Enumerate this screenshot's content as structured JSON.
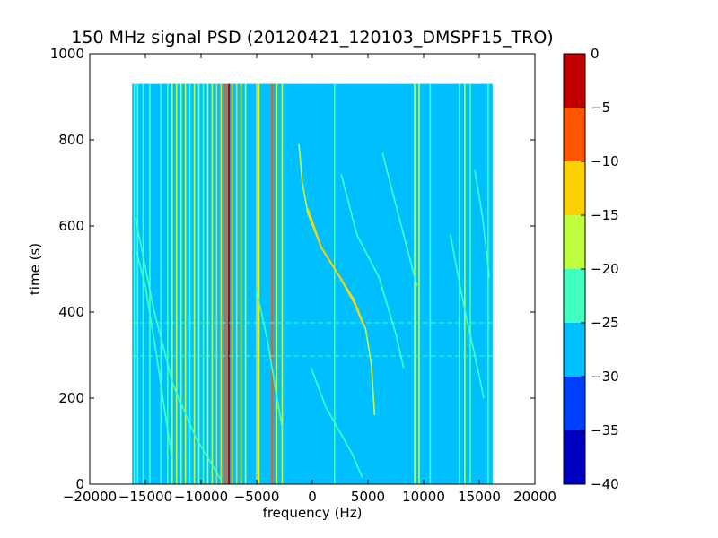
{
  "chart_data": {
    "type": "heatmap",
    "title": "150 MHz signal PSD (20120421_120103_DMSPF15_TRO)",
    "xlabel": "frequency (Hz)",
    "ylabel": "time (s)",
    "xlim": [
      -20000,
      20000
    ],
    "ylim": [
      0,
      1000
    ],
    "xticks": [
      -20000,
      -15000,
      -10000,
      -5000,
      0,
      5000,
      10000,
      15000,
      20000
    ],
    "xtick_labels": [
      "−20000",
      "−15000",
      "−10000",
      "−5000",
      "0",
      "5000",
      "10000",
      "15000",
      "20000"
    ],
    "yticks": [
      0,
      200,
      400,
      600,
      800,
      1000
    ],
    "ytick_labels": [
      "0",
      "200",
      "400",
      "600",
      "800",
      "1000"
    ],
    "data_extent": {
      "x": [
        -16200,
        16200
      ],
      "y": [
        0,
        930
      ]
    },
    "background_level": -27.5,
    "colorbar": {
      "range": [
        -40,
        0
      ],
      "ticks": [
        0,
        -5,
        -10,
        -15,
        -20,
        -25,
        -30,
        -35,
        -40
      ],
      "tick_labels": [
        "0",
        "−5",
        "−10",
        "−15",
        "−20",
        "−25",
        "−30",
        "−35",
        "−40"
      ],
      "levels": [
        {
          "from": -40,
          "to": -35,
          "color": "#0000bf"
        },
        {
          "from": -35,
          "to": -30,
          "color": "#0040ff"
        },
        {
          "from": -30,
          "to": -25,
          "color": "#00bfff"
        },
        {
          "from": -25,
          "to": -20,
          "color": "#40ffbf"
        },
        {
          "from": -20,
          "to": -15,
          "color": "#bfff40"
        },
        {
          "from": -15,
          "to": -10,
          "color": "#ffd000"
        },
        {
          "from": -10,
          "to": -5,
          "color": "#ff5500"
        },
        {
          "from": -5,
          "to": 0,
          "color": "#c00000"
        }
      ]
    },
    "vertical_lines": [
      {
        "x": -16000,
        "level": -22.5
      },
      {
        "x": -15700,
        "level": -22.5
      },
      {
        "x": -15200,
        "level": -22.5
      },
      {
        "x": -14600,
        "level": -22.5
      },
      {
        "x": -13600,
        "level": -22.5
      },
      {
        "x": -13000,
        "level": -22.5
      },
      {
        "x": -12600,
        "level": -17.5
      },
      {
        "x": -12200,
        "level": -17.5
      },
      {
        "x": -11800,
        "level": -17.5
      },
      {
        "x": -11400,
        "level": -17.5
      },
      {
        "x": -11000,
        "level": -22.5
      },
      {
        "x": -10600,
        "level": -17.5
      },
      {
        "x": -10200,
        "level": -17.5
      },
      {
        "x": -9800,
        "level": -22.5
      },
      {
        "x": -9400,
        "level": -17.5
      },
      {
        "x": -9000,
        "level": -17.5
      },
      {
        "x": -8600,
        "level": -12.5
      },
      {
        "x": -8200,
        "level": -12.5
      },
      {
        "x": -7800,
        "level": -7.5
      },
      {
        "x": -7500,
        "level": -2.5
      },
      {
        "x": -7200,
        "level": -12.5
      },
      {
        "x": -6800,
        "level": -12.5
      },
      {
        "x": -6400,
        "level": -17.5
      },
      {
        "x": -6000,
        "level": -17.5
      },
      {
        "x": -5000,
        "level": -12.5
      },
      {
        "x": -4800,
        "level": -17.5
      },
      {
        "x": -3600,
        "level": -7.5
      },
      {
        "x": -3200,
        "level": -17.5
      },
      {
        "x": -2700,
        "level": -17.5
      },
      {
        "x": 2000,
        "level": -22.5
      },
      {
        "x": 9200,
        "level": -17.5
      },
      {
        "x": 9600,
        "level": -17.5
      },
      {
        "x": 10600,
        "level": -22.5
      },
      {
        "x": 13200,
        "level": -22.5
      },
      {
        "x": 13700,
        "level": -17.5
      },
      {
        "x": 14200,
        "level": -22.5
      },
      {
        "x": 15800,
        "level": -22.5
      }
    ],
    "traces": [
      {
        "level": -17.5,
        "points": [
          [
            -1200,
            790
          ],
          [
            -900,
            700
          ],
          [
            -400,
            630
          ],
          [
            800,
            550
          ],
          [
            2500,
            480
          ],
          [
            3700,
            430
          ],
          [
            4800,
            360
          ],
          [
            5300,
            280
          ],
          [
            5600,
            160
          ]
        ]
      },
      {
        "level": -12.5,
        "points": [
          [
            -400,
            640
          ],
          [
            800,
            550
          ],
          [
            2500,
            480
          ],
          [
            3800,
            420
          ],
          [
            4600,
            370
          ]
        ]
      },
      {
        "level": -22.5,
        "points": [
          [
            -100,
            270
          ],
          [
            1200,
            180
          ],
          [
            2500,
            120
          ],
          [
            3600,
            70
          ],
          [
            4500,
            15
          ]
        ]
      },
      {
        "level": -22.5,
        "points": [
          [
            -15900,
            620
          ],
          [
            -14200,
            400
          ],
          [
            -12500,
            230
          ],
          [
            -10500,
            110
          ],
          [
            -8200,
            10
          ]
        ]
      },
      {
        "level": -22.5,
        "points": [
          [
            -15800,
            540
          ],
          [
            -15000,
            460
          ],
          [
            -14000,
            300
          ],
          [
            -13200,
            160
          ],
          [
            -12600,
            60
          ]
        ]
      },
      {
        "level": -22.5,
        "points": [
          [
            -5000,
            450
          ],
          [
            -4000,
            330
          ],
          [
            -3300,
            220
          ],
          [
            -2700,
            130
          ]
        ]
      },
      {
        "level": -22.5,
        "points": [
          [
            2600,
            720
          ],
          [
            4000,
            580
          ],
          [
            6000,
            480
          ],
          [
            7500,
            350
          ],
          [
            8200,
            270
          ]
        ]
      },
      {
        "level": -22.5,
        "points": [
          [
            6300,
            770
          ],
          [
            7600,
            640
          ],
          [
            8800,
            520
          ],
          [
            9400,
            460
          ]
        ]
      },
      {
        "level": -22.5,
        "points": [
          [
            12400,
            580
          ],
          [
            13200,
            470
          ],
          [
            13900,
            380
          ],
          [
            14600,
            300
          ],
          [
            15400,
            200
          ]
        ]
      },
      {
        "level": -22.5,
        "points": [
          [
            14600,
            730
          ],
          [
            15300,
            620
          ],
          [
            15900,
            480
          ]
        ]
      }
    ],
    "horizontal_lines": [
      {
        "y": 375,
        "level": -22.5
      },
      {
        "y": 298,
        "level": -22.5
      }
    ]
  }
}
